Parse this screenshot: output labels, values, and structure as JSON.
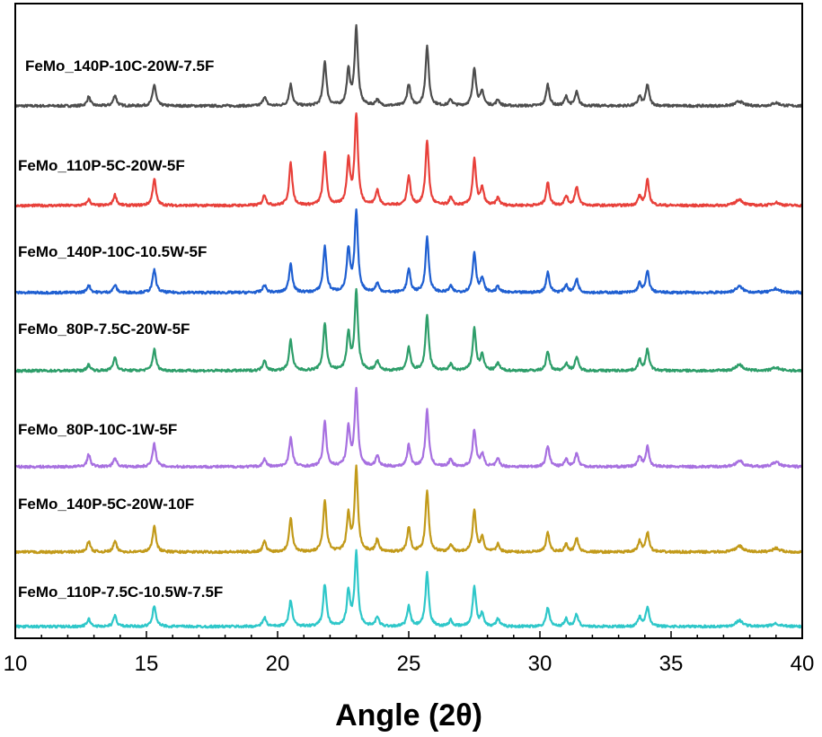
{
  "chart_data": {
    "type": "line",
    "title": "",
    "xlabel": "Angle (2θ)",
    "ylabel": "",
    "xlim": [
      10,
      40
    ],
    "x_ticks": [
      10,
      15,
      20,
      25,
      30,
      35,
      40
    ],
    "x_tick_labels": [
      "10",
      "15",
      "20",
      "25",
      "30",
      "35",
      "40"
    ],
    "grid": false,
    "legend": "none",
    "y_units": "arbitrary (stacked, offset)",
    "peak_positions": [
      12.8,
      13.8,
      15.3,
      19.5,
      20.5,
      21.8,
      22.7,
      23.0,
      23.8,
      25.0,
      25.7,
      26.6,
      27.5,
      27.8,
      28.4,
      30.3,
      31.0,
      31.4,
      33.8,
      34.1,
      37.6,
      39.0
    ],
    "series": [
      {
        "name": "FeMo_140P-10C-20W-7.5F",
        "color": "#4d4d4d",
        "peak_intensities": [
          12,
          14,
          28,
          12,
          28,
          58,
          45,
          102,
          8,
          28,
          78,
          8,
          50,
          18,
          8,
          28,
          12,
          18,
          12,
          28,
          6,
          4
        ]
      },
      {
        "name": "FeMo_110P-5C-20W-5F",
        "color": "#e8403a",
        "peak_intensities": [
          8,
          14,
          35,
          14,
          55,
          70,
          58,
          118,
          20,
          38,
          85,
          10,
          60,
          22,
          10,
          30,
          12,
          25,
          12,
          33,
          8,
          4
        ]
      },
      {
        "name": "FeMo_140P-10C-10.5W-5F",
        "color": "#1f5fd1",
        "peak_intensities": [
          10,
          10,
          30,
          10,
          38,
          60,
          55,
          105,
          12,
          30,
          72,
          8,
          52,
          18,
          8,
          27,
          10,
          18,
          12,
          28,
          8,
          5
        ]
      },
      {
        "name": "FeMo_80P-7.5C-20W-5F",
        "color": "#2e9e6a",
        "peak_intensities": [
          8,
          18,
          28,
          14,
          40,
          62,
          48,
          103,
          12,
          30,
          72,
          8,
          55,
          20,
          10,
          25,
          10,
          18,
          14,
          28,
          8,
          4
        ]
      },
      {
        "name": "FeMo_80P-10C-1W-5F",
        "color": "#a770e0",
        "peak_intensities": [
          16,
          12,
          30,
          10,
          38,
          58,
          50,
          100,
          14,
          28,
          74,
          10,
          48,
          16,
          10,
          28,
          10,
          18,
          14,
          26,
          8,
          6
        ]
      },
      {
        "name": "FeMo_140P-5C-20W-10F",
        "color": "#c29a1a",
        "peak_intensities": [
          14,
          14,
          35,
          14,
          45,
          68,
          48,
          110,
          16,
          32,
          80,
          10,
          55,
          18,
          10,
          25,
          10,
          18,
          14,
          26,
          8,
          5
        ]
      },
      {
        "name": "FeMo_110P-7.5C-10.5W-7.5F",
        "color": "#2ec7c9",
        "peak_intensities": [
          10,
          14,
          28,
          12,
          35,
          55,
          45,
          96,
          12,
          26,
          70,
          8,
          52,
          16,
          10,
          25,
          10,
          16,
          12,
          26,
          8,
          4
        ]
      }
    ]
  }
}
